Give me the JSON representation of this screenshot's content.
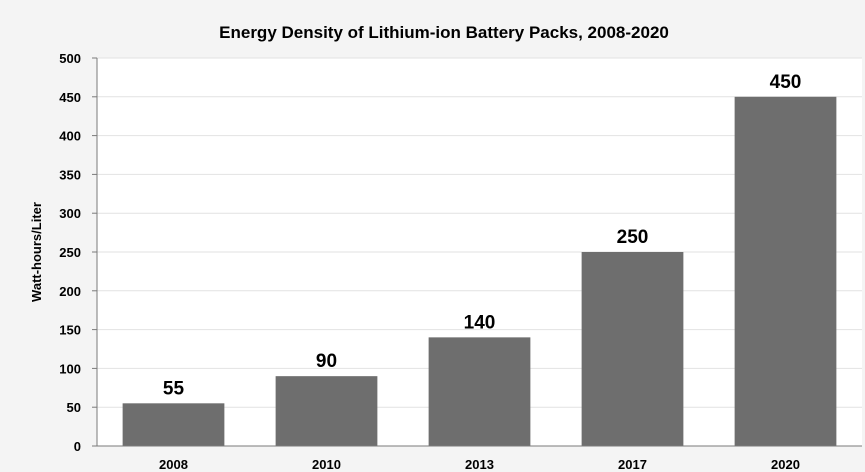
{
  "chart_data": {
    "type": "bar",
    "title": "Energy Density of Lithium-ion Battery Packs, 2008-2020",
    "xlabel": "",
    "ylabel": "Watt-hours/Liter",
    "categories": [
      "2008",
      "2010",
      "2013",
      "2017",
      "2020"
    ],
    "values": [
      55,
      90,
      140,
      250,
      450
    ],
    "data_labels": [
      "55",
      "90",
      "140",
      "250",
      "450"
    ],
    "ylim": [
      0,
      500
    ],
    "yticks": [
      0,
      50,
      100,
      150,
      200,
      250,
      300,
      350,
      400,
      450,
      500
    ],
    "ytick_labels": [
      "0",
      "50",
      "100",
      "150",
      "200",
      "250",
      "300",
      "350",
      "400",
      "450",
      "500"
    ],
    "grid": true,
    "legend": "none",
    "colors": {
      "bar": "#6e6e6e",
      "plot_background": "#ffffff",
      "frame_background": "#f4f4f4",
      "gridline": "#e2e2e2",
      "axis": "#7a7a7a"
    }
  }
}
